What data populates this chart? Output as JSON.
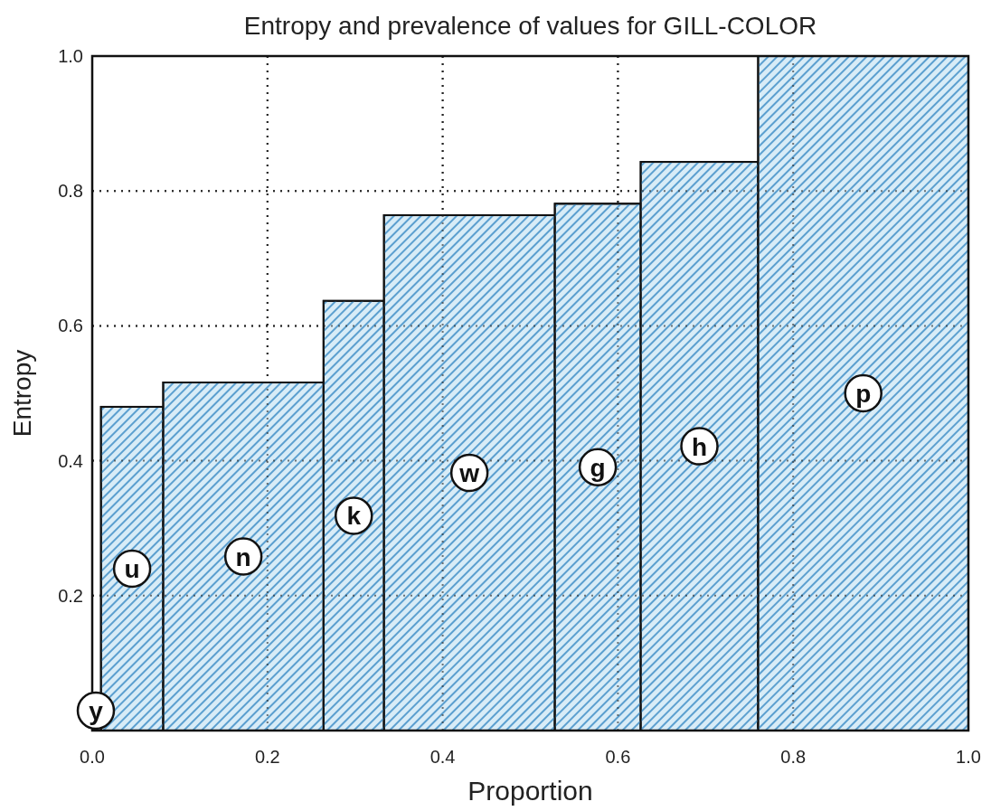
{
  "chart_data": {
    "type": "histogram",
    "title": "Entropy and prevalence of values for GILL-COLOR",
    "xlabel": "Proportion",
    "ylabel": "Entropy",
    "bins": [
      0.01,
      0.081,
      0.264,
      0.333,
      0.528,
      0.626,
      0.76,
      1.0
    ],
    "values": [
      0.48,
      0.516,
      0.637,
      0.764,
      0.781,
      0.843,
      1.0
    ],
    "color": "#d8ecf7",
    "xlim": [
      0,
      1
    ],
    "ylim": [
      0,
      1
    ],
    "xticks": [
      {
        "value": 0,
        "label": "0.0"
      },
      0.2,
      0.4,
      0.6,
      0.8,
      {
        "value": 1,
        "label": "1.0"
      }
    ],
    "yticks": [
      {
        "value": 0.2,
        "label": "0.2"
      },
      0.4,
      0.6,
      0.8,
      {
        "value": 1,
        "label": "1.0"
      }
    ],
    "grid": true,
    "annotations": [
      "y",
      "u",
      "n",
      "k",
      "w",
      "g",
      "h",
      "p"
    ]
  }
}
